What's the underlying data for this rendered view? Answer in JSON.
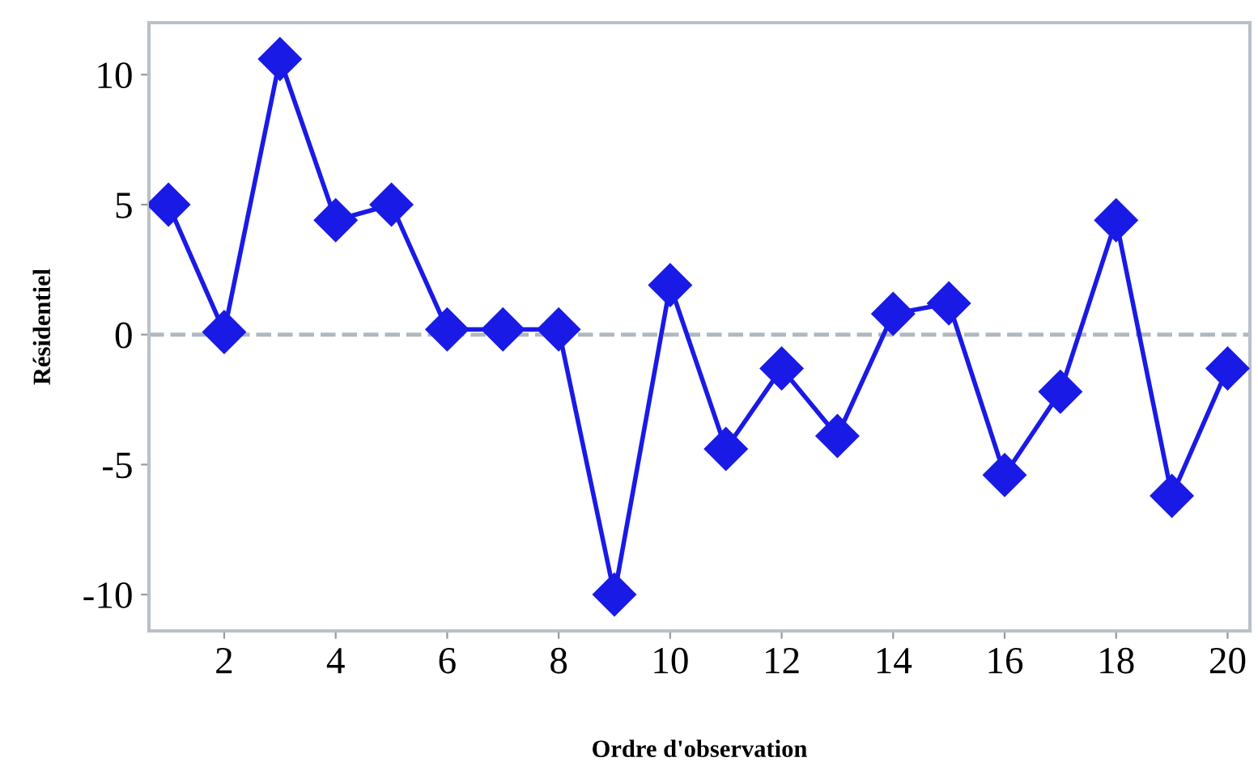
{
  "chart_data": {
    "type": "line",
    "xlabel": "Ordre d'observation",
    "ylabel": "Résidentiel",
    "x": [
      1,
      2,
      3,
      4,
      5,
      6,
      7,
      8,
      9,
      10,
      11,
      12,
      13,
      14,
      15,
      16,
      17,
      18,
      19,
      20
    ],
    "series": [
      {
        "color": "#1a1ae6",
        "values": [
          5.0,
          0.1,
          10.6,
          4.4,
          5.0,
          0.2,
          0.2,
          0.2,
          -10.0,
          1.9,
          -4.4,
          -1.3,
          -3.9,
          0.8,
          1.2,
          -5.4,
          -2.2,
          4.4,
          -6.2,
          -1.3
        ]
      }
    ],
    "xlim": [
      0.65,
      20.4
    ],
    "ylim": [
      -11.4,
      12.0
    ],
    "xticks": [
      2,
      4,
      6,
      8,
      10,
      12,
      14,
      16,
      18,
      20
    ],
    "yticks": [
      -10,
      -5,
      0,
      5,
      10
    ],
    "ref_lines": [
      {
        "axis": "y",
        "value": 0,
        "color": "#b0b8c0",
        "line_style": "dashed"
      }
    ],
    "marker": "diamond",
    "line_style": "solid",
    "grid": false
  }
}
